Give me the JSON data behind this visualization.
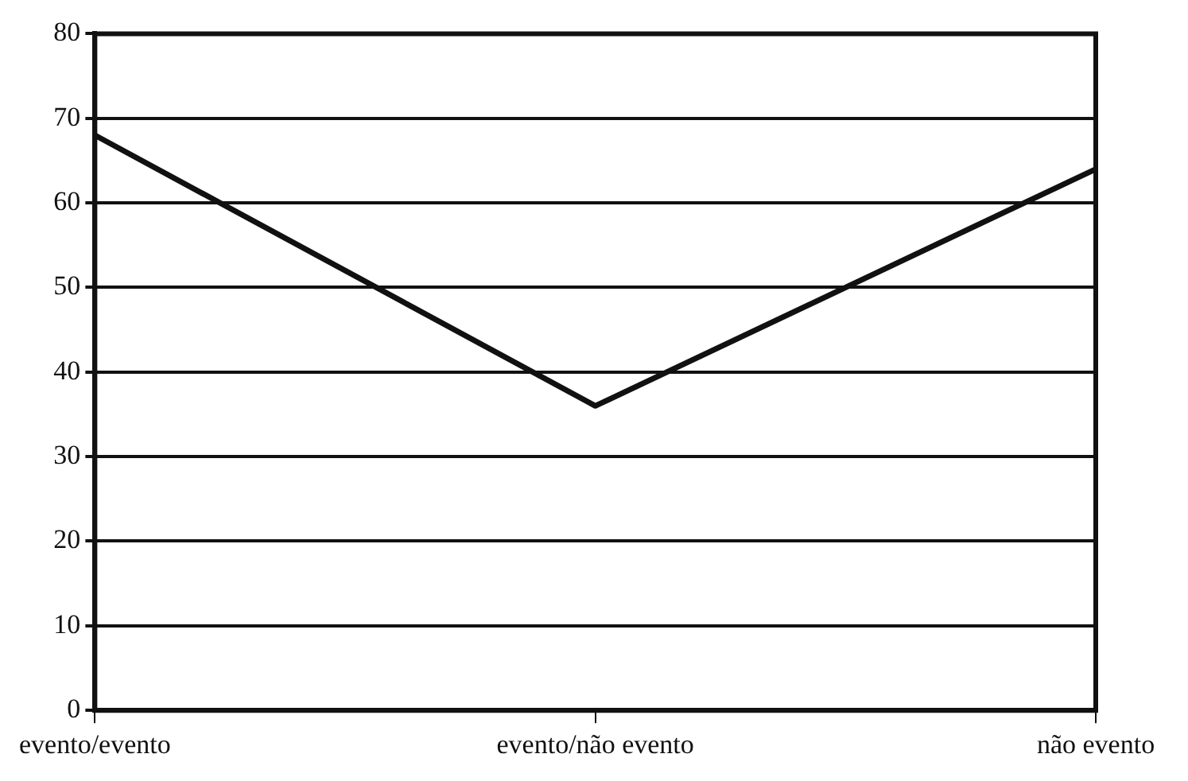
{
  "chart_data": {
    "type": "line",
    "categories": [
      "evento/evento",
      "evento/não evento",
      "não evento"
    ],
    "series": [
      {
        "color": "#111111",
        "values": [
          68,
          36,
          64
        ]
      }
    ],
    "ylim": [
      0,
      80
    ],
    "yticks": [
      0,
      10,
      20,
      30,
      40,
      50,
      60,
      70,
      80
    ],
    "grid": "y",
    "legend": false,
    "marker": "none",
    "line_style": "solid"
  }
}
